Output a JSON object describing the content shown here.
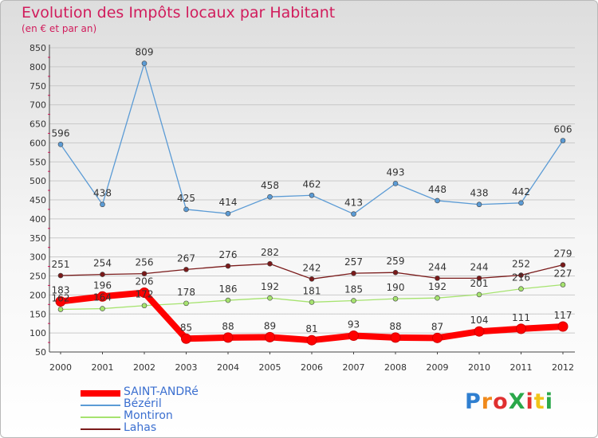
{
  "title": "Evolution des Impôts locaux par Habitant",
  "subtitle": "(en € et par an)",
  "brand": "ProXiti",
  "chart_data": {
    "type": "line",
    "title": "Evolution des Impôts locaux par Habitant",
    "subtitle": "(en € et par an)",
    "xlabel": "",
    "ylabel": "",
    "x": [
      "2000",
      "2001",
      "2002",
      "2003",
      "2004",
      "2005",
      "2006",
      "2007",
      "2008",
      "2009",
      "2010",
      "2011",
      "2012"
    ],
    "y_ticks": [
      "50",
      "100",
      "150",
      "200",
      "250",
      "300",
      "350",
      "400",
      "450",
      "500",
      "550",
      "600",
      "650",
      "700",
      "750",
      "800",
      "850"
    ],
    "ylim": [
      50,
      850
    ],
    "grid": "horizontal",
    "legend_position": "bottom-left",
    "series": [
      {
        "name": "SAINT-ANDRé",
        "color": "#ff0000",
        "values": [
          183,
          196,
          206,
          85,
          88,
          89,
          81,
          93,
          88,
          87,
          104,
          111,
          117
        ],
        "labels": [
          "183",
          "196",
          "206",
          "85",
          "88",
          "89",
          "81",
          "93",
          "88",
          "87",
          "104",
          "111",
          "117"
        ]
      },
      {
        "name": "Bézéril",
        "color": "#5b9bd5",
        "values": [
          596,
          438,
          809,
          425,
          414,
          458,
          462,
          413,
          493,
          448,
          438,
          442,
          606
        ],
        "labels": [
          "596",
          "438",
          "809",
          "425",
          "414",
          "458",
          "462",
          "413",
          "493",
          "448",
          "438",
          "442",
          "606"
        ]
      },
      {
        "name": "Montiron",
        "color": "#a6e36f",
        "values": [
          162,
          164,
          172,
          178,
          186,
          192,
          181,
          185,
          190,
          192,
          201,
          216,
          227
        ],
        "labels": [
          "162",
          "164",
          "172",
          "178",
          "186",
          "192",
          "181",
          "185",
          "190",
          "192",
          "201",
          "216",
          "227"
        ]
      },
      {
        "name": "Lahas",
        "color": "#7a1a1a",
        "values": [
          251,
          254,
          256,
          267,
          276,
          282,
          242,
          257,
          259,
          244,
          244,
          252,
          279
        ],
        "labels": [
          "251",
          "254",
          "256",
          "267",
          "276",
          "282",
          "242",
          "257",
          "259",
          "244",
          "244",
          "252",
          "279"
        ]
      }
    ]
  }
}
